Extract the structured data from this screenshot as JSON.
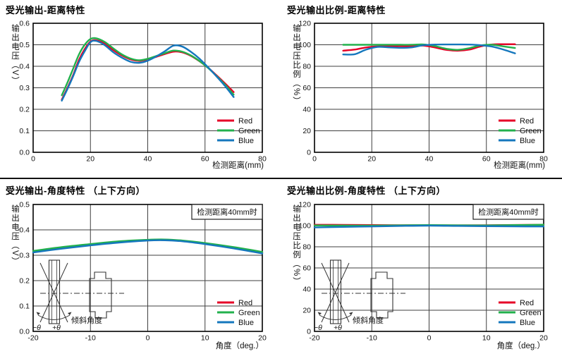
{
  "colors": {
    "red": "#e60027",
    "green": "#22b14c",
    "blue": "#1577bd",
    "grid": "#3f3f3f",
    "axis": "#000000",
    "text": "#111111"
  },
  "chart_data": [
    {
      "type": "line",
      "title": "受光输出-距离特性",
      "ylabel": "输出电压（V）",
      "xlabel": "检测距离(mm)",
      "xlim": [
        0,
        80
      ],
      "ylim": [
        0,
        0.6
      ],
      "x_tick_vals": [
        0,
        20,
        40,
        60,
        80
      ],
      "x_tick_labels": [
        "0",
        "20",
        "40",
        "60",
        "80"
      ],
      "y_tick_vals": [
        0,
        0.1,
        0.2,
        0.3,
        0.4,
        0.5,
        0.6
      ],
      "y_tick_labels": [
        "0.0",
        "0.1",
        "0.2",
        "0.3",
        "0.4",
        "0.5",
        "0.6"
      ],
      "series": [
        {
          "name": "Red",
          "color": "red",
          "x": [
            10,
            12,
            14,
            16,
            18,
            20,
            22,
            25,
            28,
            31,
            34,
            37,
            40,
            43,
            46,
            49,
            52,
            55,
            58,
            61,
            64,
            67,
            70
          ],
          "y": [
            0.245,
            0.3,
            0.36,
            0.43,
            0.48,
            0.515,
            0.521,
            0.505,
            0.475,
            0.45,
            0.432,
            0.425,
            0.432,
            0.444,
            0.457,
            0.468,
            0.465,
            0.449,
            0.424,
            0.394,
            0.358,
            0.32,
            0.28
          ]
        },
        {
          "name": "Green",
          "color": "green",
          "x": [
            10,
            12,
            14,
            16,
            18,
            20,
            22,
            25,
            28,
            31,
            34,
            37,
            40,
            43,
            46,
            49,
            52,
            55,
            58,
            61,
            64,
            67,
            70
          ],
          "y": [
            0.265,
            0.325,
            0.39,
            0.455,
            0.5,
            0.527,
            0.53,
            0.513,
            0.483,
            0.455,
            0.436,
            0.428,
            0.435,
            0.448,
            0.461,
            0.473,
            0.468,
            0.451,
            0.425,
            0.393,
            0.355,
            0.314,
            0.268
          ]
        },
        {
          "name": "Blue",
          "color": "blue",
          "x": [
            10,
            12,
            14,
            16,
            18,
            20,
            22,
            25,
            28,
            31,
            34,
            37,
            40,
            43,
            46,
            49,
            52,
            55,
            58,
            61,
            64,
            67,
            70
          ],
          "y": [
            0.24,
            0.295,
            0.355,
            0.42,
            0.47,
            0.512,
            0.518,
            0.498,
            0.465,
            0.44,
            0.421,
            0.416,
            0.426,
            0.446,
            0.47,
            0.496,
            0.492,
            0.468,
            0.436,
            0.396,
            0.353,
            0.308,
            0.257
          ]
        }
      ]
    },
    {
      "type": "line",
      "title": "受光输出比例-距离特性",
      "ylabel": "输出电压比例（%）",
      "xlabel": "检测距离(mm)",
      "xlim": [
        0,
        80
      ],
      "ylim": [
        0,
        120
      ],
      "x_tick_vals": [
        0,
        20,
        40,
        60,
        80
      ],
      "x_tick_labels": [
        "0",
        "20",
        "40",
        "60",
        "80"
      ],
      "y_tick_vals": [
        0,
        20,
        40,
        60,
        80,
        100,
        120
      ],
      "y_tick_labels": [
        "0",
        "20",
        "40",
        "60",
        "80",
        "100",
        "120"
      ],
      "series": [
        {
          "name": "Red",
          "color": "red",
          "x": [
            10,
            14,
            18,
            22,
            26,
            30,
            34,
            38,
            42,
            46,
            50,
            54,
            58,
            62,
            66,
            70
          ],
          "y": [
            94.5,
            95.5,
            97.5,
            98.5,
            98.7,
            98.7,
            98.7,
            99.2,
            97.5,
            95.3,
            94.5,
            95.5,
            98.5,
            100.3,
            100.5,
            100.5
          ]
        },
        {
          "name": "Green",
          "color": "green",
          "x": [
            10,
            14,
            18,
            22,
            26,
            30,
            34,
            38,
            42,
            46,
            50,
            54,
            58,
            62,
            66,
            70
          ],
          "y": [
            100,
            100,
            100,
            100,
            100,
            100,
            100,
            100.3,
            98.8,
            96.3,
            95.3,
            96.8,
            99.5,
            100,
            98.5,
            97
          ]
        },
        {
          "name": "Blue",
          "color": "blue",
          "x": [
            10,
            14,
            18,
            22,
            26,
            30,
            34,
            38,
            42,
            46,
            50,
            54,
            58,
            62,
            66,
            70
          ],
          "y": [
            91,
            91.2,
            95.5,
            98,
            97.6,
            97.2,
            97.6,
            99.6,
            100.2,
            100.3,
            100.3,
            100.2,
            99.6,
            98.3,
            95.5,
            92
          ]
        }
      ]
    },
    {
      "type": "line",
      "title": "受光输出-角度特性 （上下方向）",
      "ylabel": "输出电压（V）",
      "xlabel": "角度（deg.）",
      "annotation": "检测距离40mm时",
      "inset": {
        "neg_theta": "−θ",
        "pos_theta": "+θ",
        "label": "倾斜角度"
      },
      "xlim": [
        -20,
        20
      ],
      "ylim": [
        0,
        0.5
      ],
      "x_tick_vals": [
        -20,
        -10,
        0,
        10,
        20
      ],
      "x_tick_labels": [
        "-20",
        "-10",
        "0",
        "10",
        "20"
      ],
      "y_tick_vals": [
        0,
        0.1,
        0.2,
        0.3,
        0.4,
        0.5
      ],
      "y_tick_labels": [
        "0.0",
        "0.1",
        "0.2",
        "0.3",
        "0.4",
        "0.5"
      ],
      "series": [
        {
          "name": "Red",
          "color": "red",
          "x": [
            -20,
            -15,
            -10,
            -5,
            0,
            3,
            6,
            10,
            15,
            20
          ],
          "y": [
            0.313,
            0.328,
            0.341,
            0.352,
            0.359,
            0.36,
            0.356,
            0.346,
            0.329,
            0.31
          ]
        },
        {
          "name": "Green",
          "color": "green",
          "x": [
            -20,
            -15,
            -10,
            -5,
            0,
            3,
            6,
            10,
            15,
            20
          ],
          "y": [
            0.317,
            0.332,
            0.344,
            0.355,
            0.361,
            0.362,
            0.358,
            0.348,
            0.332,
            0.313
          ]
        },
        {
          "name": "Blue",
          "color": "blue",
          "x": [
            -20,
            -15,
            -10,
            -5,
            0,
            3,
            6,
            10,
            15,
            20
          ],
          "y": [
            0.311,
            0.326,
            0.339,
            0.35,
            0.358,
            0.359,
            0.355,
            0.344,
            0.327,
            0.307
          ]
        }
      ]
    },
    {
      "type": "line",
      "title": "受光输出比例-角度特性 （上下方向）",
      "ylabel": "输出电压比例（%）",
      "xlabel": "角度（deg.）",
      "annotation": "检测距离40mm时",
      "inset": {
        "neg_theta": "−θ",
        "pos_theta": "+θ",
        "label": "倾斜角度"
      },
      "xlim": [
        -20,
        20
      ],
      "ylim": [
        0,
        120
      ],
      "x_tick_vals": [
        -20,
        -10,
        0,
        10,
        20
      ],
      "x_tick_labels": [
        "-20",
        "-10",
        "0",
        "10",
        "20"
      ],
      "y_tick_vals": [
        0,
        20,
        40,
        60,
        80,
        100,
        120
      ],
      "y_tick_labels": [
        "0",
        "20",
        "40",
        "60",
        "80",
        "100",
        "120"
      ],
      "series": [
        {
          "name": "Red",
          "color": "red",
          "x": [
            -20,
            -15,
            -10,
            -5,
            0,
            5,
            10,
            15,
            20
          ],
          "y": [
            100.8,
            100.7,
            100.5,
            100.4,
            100.3,
            100.3,
            100.4,
            100.6,
            100.8
          ]
        },
        {
          "name": "Green",
          "color": "green",
          "x": [
            -20,
            -15,
            -10,
            -5,
            0,
            5,
            10,
            15,
            20
          ],
          "y": [
            100.2,
            100.1,
            100.0,
            100.3,
            100.5,
            100.3,
            100.2,
            100.5,
            100.9
          ]
        },
        {
          "name": "Blue",
          "color": "blue",
          "x": [
            -20,
            -15,
            -10,
            -5,
            0,
            5,
            10,
            15,
            20
          ],
          "y": [
            98.3,
            98.8,
            99.2,
            99.7,
            100.0,
            99.7,
            99.5,
            99.3,
            99.2
          ]
        }
      ]
    }
  ]
}
